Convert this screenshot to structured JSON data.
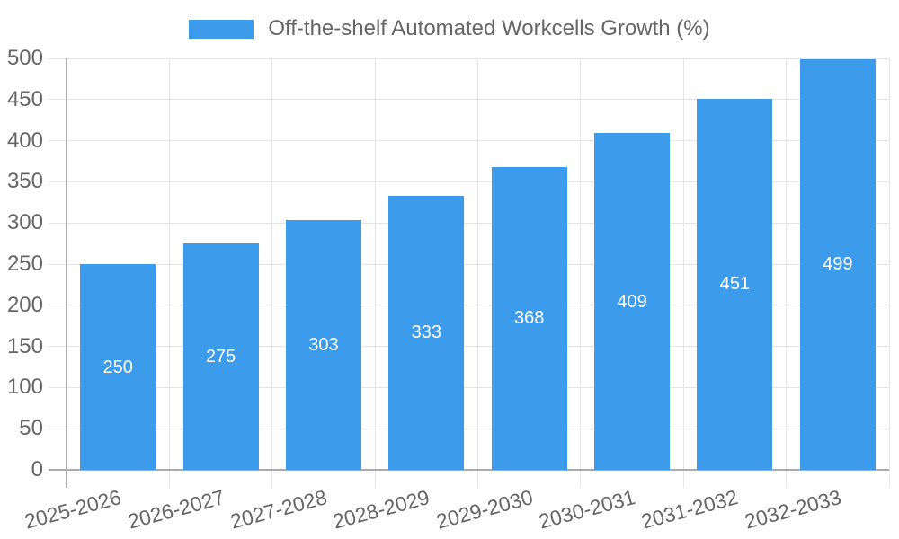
{
  "chart_data": {
    "type": "bar",
    "title": "",
    "categories": [
      "2025-2026",
      "2026-2027",
      "2027-2028",
      "2028-2029",
      "2029-2030",
      "2030-2031",
      "2031-2032",
      "2032-2033"
    ],
    "series": [
      {
        "name": "Off-the-shelf Automated Workcells Growth (%)",
        "values": [
          250,
          275,
          303,
          333,
          368,
          409,
          451,
          499
        ]
      }
    ],
    "xlabel": "",
    "ylabel": "",
    "ylim": [
      0,
      500
    ],
    "ytick_step": 50,
    "grid": true,
    "legend_position": "top",
    "bar_color": "#3c9beb",
    "value_label_color": "#ffffff",
    "axis_text_color": "#666666"
  }
}
